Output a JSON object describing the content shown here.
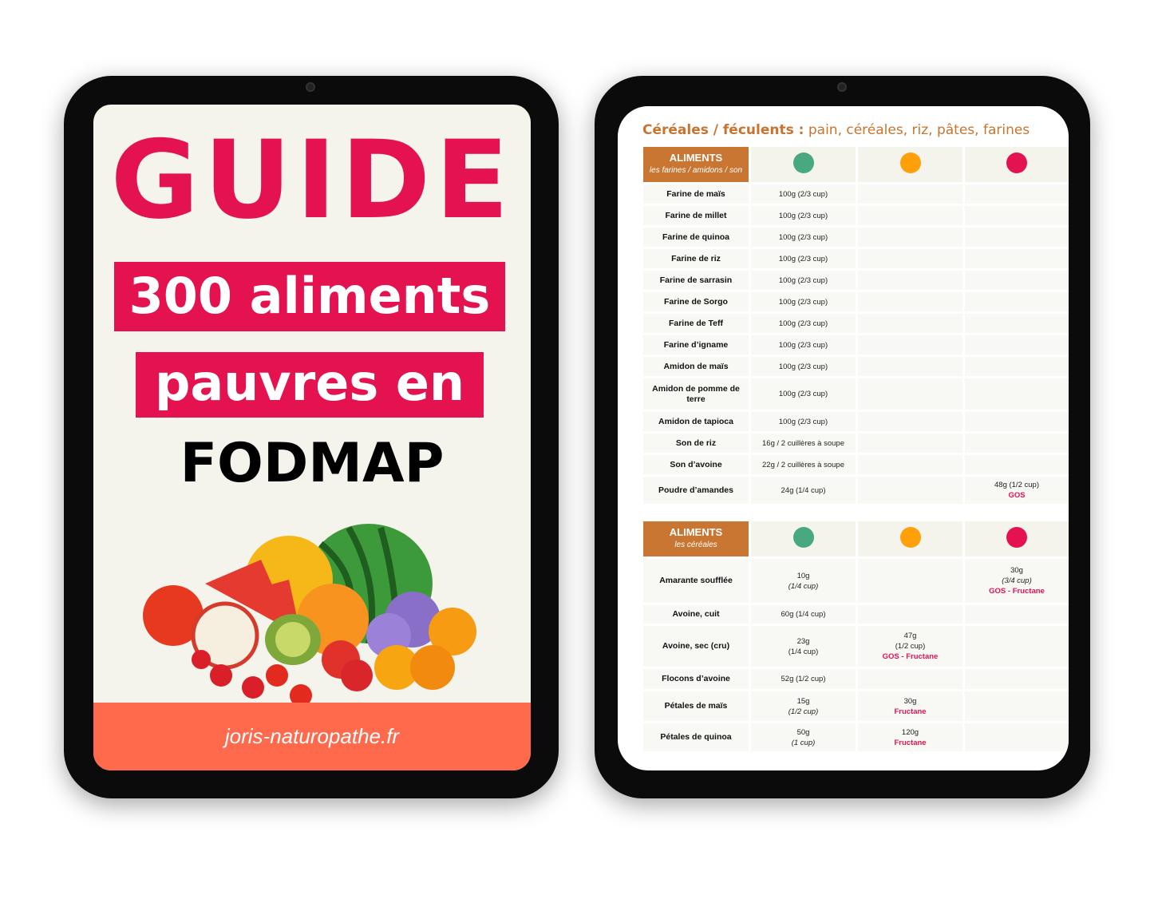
{
  "cover": {
    "title": "GUIDE",
    "line1": "300 aliments",
    "line2": "pauvres en",
    "line3": "FODMAP",
    "website": "joris-naturopathe.fr",
    "accent": "#e4124f",
    "footer_color": "#ff6a4d"
  },
  "page": {
    "heading_bold": "Céréales / féculents :",
    "heading_rest": " pain, céréales, riz, pâtes, farines",
    "header_color": "#c97632",
    "dot_colors": [
      "#48a97f",
      "#ffa00a",
      "#e4124f"
    ],
    "tables": [
      {
        "header": "ALIMENTS",
        "subheader": "les farines / amidons / son",
        "rows": [
          {
            "name": "Farine de maïs",
            "cells": [
              [
                [
                  "100g (2/3 cup)",
                  ""
                ]
              ],
              [],
              []
            ]
          },
          {
            "name": "Farine de millet",
            "cells": [
              [
                [
                  "100g (2/3 cup)",
                  ""
                ]
              ],
              [],
              []
            ]
          },
          {
            "name": "Farine de quinoa",
            "cells": [
              [
                [
                  "100g (2/3 cup)",
                  ""
                ]
              ],
              [],
              []
            ]
          },
          {
            "name": "Farine de riz",
            "cells": [
              [
                [
                  "100g (2/3 cup)",
                  ""
                ]
              ],
              [],
              []
            ]
          },
          {
            "name": "Farine de sarrasin",
            "cells": [
              [
                [
                  "100g (2/3 cup)",
                  ""
                ]
              ],
              [],
              []
            ]
          },
          {
            "name": "Farine de Sorgo",
            "cells": [
              [
                [
                  "100g (2/3 cup)",
                  ""
                ]
              ],
              [],
              []
            ]
          },
          {
            "name": "Farine de Teff",
            "cells": [
              [
                [
                  "100g (2/3 cup)",
                  ""
                ]
              ],
              [],
              []
            ]
          },
          {
            "name": "Farine d’igname",
            "cells": [
              [
                [
                  "100g (2/3 cup)",
                  ""
                ]
              ],
              [],
              []
            ]
          },
          {
            "name": "Amidon de maïs",
            "cells": [
              [
                [
                  "100g (2/3 cup)",
                  ""
                ]
              ],
              [],
              []
            ]
          },
          {
            "name": "Amidon de pomme de terre",
            "cells": [
              [
                [
                  "100g (2/3 cup)",
                  ""
                ]
              ],
              [],
              []
            ]
          },
          {
            "name": "Amidon de tapioca",
            "cells": [
              [
                [
                  "100g (2/3 cup)",
                  ""
                ]
              ],
              [],
              []
            ]
          },
          {
            "name": "Son de riz",
            "cells": [
              [
                [
                  "16g / 2 cuillères à soupe",
                  ""
                ]
              ],
              [],
              []
            ]
          },
          {
            "name": "Son d’avoine",
            "cells": [
              [
                [
                  "22g / 2 cuillères à soupe",
                  ""
                ]
              ],
              [],
              []
            ]
          },
          {
            "name": "Poudre d’amandes",
            "cells": [
              [
                [
                  "24g (1/4 cup)",
                  ""
                ]
              ],
              [],
              [
                [
                  "48g (1/2 cup)",
                  ""
                ],
                [
                  "GOS",
                  "r"
                ]
              ]
            ]
          }
        ]
      },
      {
        "header": "ALIMENTS",
        "subheader": "les céréales",
        "rows": [
          {
            "name": "Amarante soufflée",
            "cells": [
              [
                [
                  "10g",
                  ""
                ],
                [
                  "(1/4 cup)",
                  "i"
                ]
              ],
              [],
              [
                [
                  "30g",
                  ""
                ],
                [
                  "(3/4 cup)",
                  "i"
                ],
                [
                  "GOS - Fructane",
                  "r"
                ]
              ]
            ]
          },
          {
            "name": "Avoine, cuit",
            "cells": [
              [
                [
                  "60g (1/4 cup)",
                  ""
                ]
              ],
              [],
              []
            ]
          },
          {
            "name": "Avoine, sec (cru)",
            "cells": [
              [
                [
                  "23g",
                  ""
                ],
                [
                  "(1/4 cup)",
                  ""
                ]
              ],
              [
                [
                  "47g",
                  ""
                ],
                [
                  "(1/2 cup)",
                  ""
                ],
                [
                  "GOS - Fructane",
                  "r"
                ]
              ],
              []
            ]
          },
          {
            "name": "Flocons d’avoine",
            "cells": [
              [
                [
                  "52g  (1/2 cup)",
                  ""
                ]
              ],
              [],
              []
            ]
          },
          {
            "name": "Pétales de maïs",
            "cells": [
              [
                [
                  "15g",
                  ""
                ],
                [
                  "(1/2 cup)",
                  "i"
                ]
              ],
              [
                [
                  "30g",
                  ""
                ],
                [
                  "Fructane",
                  "r"
                ]
              ],
              []
            ]
          },
          {
            "name": "Pétales de quinoa",
            "cells": [
              [
                [
                  "50g",
                  ""
                ],
                [
                  "(1 cup)",
                  "i"
                ]
              ],
              [
                [
                  "120g",
                  ""
                ],
                [
                  "Fructane",
                  "r"
                ]
              ],
              []
            ]
          }
        ]
      }
    ]
  }
}
